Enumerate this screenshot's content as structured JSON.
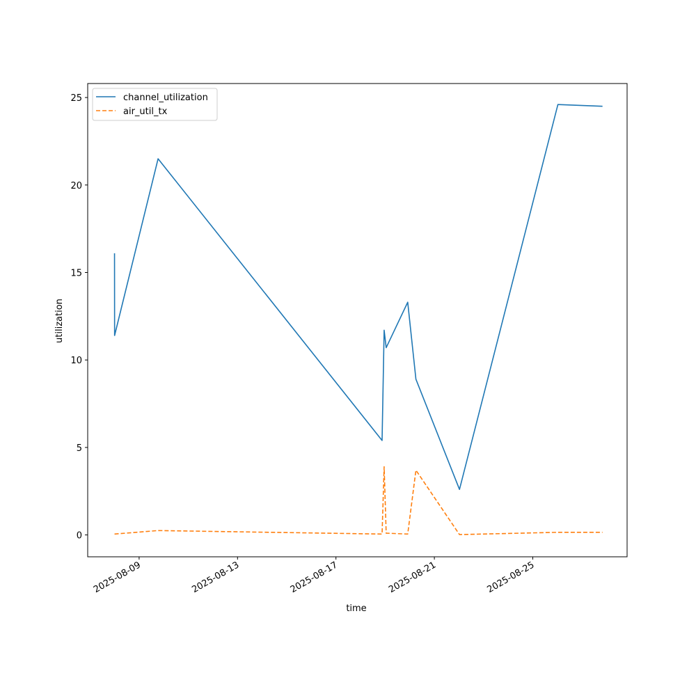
{
  "chart_data": {
    "type": "line",
    "title": "",
    "xlabel": "time",
    "ylabel": "utilization",
    "grid": false,
    "legend_position": "upper-left",
    "xlim": [
      "2025-08-06T21:50:00",
      "2025-08-28T20:00:00"
    ],
    "ylim": [
      -1.25,
      25.8
    ],
    "x_ticks": [
      "2025-08-09",
      "2025-08-13",
      "2025-08-17",
      "2025-08-21",
      "2025-08-25"
    ],
    "y_ticks": [
      0,
      5,
      10,
      15,
      20,
      25
    ],
    "series": [
      {
        "name": "channel_utilization",
        "color": "#1f77b4",
        "dash": "solid",
        "points": [
          [
            "2025-08-08T00:00:00",
            16.1
          ],
          [
            "2025-08-08T00:05:00",
            11.4
          ],
          [
            "2025-08-09T18:30:00",
            21.5
          ],
          [
            "2025-08-18T21:00:00",
            5.4
          ],
          [
            "2025-08-18T23:00:00",
            11.7
          ],
          [
            "2025-08-19T01:00:00",
            10.7
          ],
          [
            "2025-08-19T22:00:00",
            13.3
          ],
          [
            "2025-08-20T06:00:00",
            8.9
          ],
          [
            "2025-08-22T00:30:00",
            2.6
          ],
          [
            "2025-08-26T00:30:00",
            24.6
          ],
          [
            "2025-08-27T20:00:00",
            24.5
          ]
        ]
      },
      {
        "name": "air_util_tx",
        "color": "#ff7f0e",
        "dash": "dashed",
        "points": [
          [
            "2025-08-08T00:00:00",
            0.05
          ],
          [
            "2025-08-09T18:30:00",
            0.25
          ],
          [
            "2025-08-18T21:00:00",
            0.05
          ],
          [
            "2025-08-18T23:00:00",
            3.9
          ],
          [
            "2025-08-19T01:00:00",
            0.1
          ],
          [
            "2025-08-19T22:00:00",
            0.05
          ],
          [
            "2025-08-20T06:00:00",
            3.7
          ],
          [
            "2025-08-22T00:30:00",
            0.02
          ],
          [
            "2025-08-26T00:30:00",
            0.15
          ],
          [
            "2025-08-27T20:00:00",
            0.15
          ]
        ]
      }
    ]
  }
}
